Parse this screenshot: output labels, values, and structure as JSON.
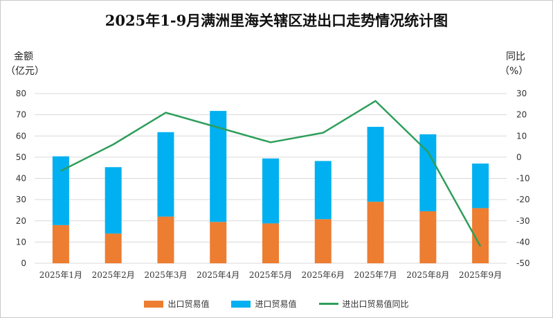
{
  "colors": {
    "export": "#ED7D31",
    "import": "#00B0F0",
    "yoy": "#2E9E5A",
    "grid": "#d9d9d9"
  },
  "chart_data": {
    "type": "bar",
    "stacked": true,
    "title": "2025年1-9月满洲里海关辖区进出口走势情况统计图",
    "ylabel_left_line1": "金额",
    "ylabel_left_line2": "（亿元）",
    "ylabel_right_line1": "同比",
    "ylabel_right_line2": "（%）",
    "categories": [
      "2025年1月",
      "2025年2月",
      "2025年3月",
      "2025年4月",
      "2025年5月",
      "2025年6月",
      "2025年7月",
      "2025年8月",
      "2025年9月"
    ],
    "ylim_left": [
      0,
      80
    ],
    "ylim_right": [
      -50,
      30
    ],
    "yticks_left": [
      "80",
      "70",
      "60",
      "50",
      "40",
      "30",
      "20",
      "10",
      "0"
    ],
    "yticks_right": [
      "30",
      "20",
      "10",
      "0",
      "-10",
      "-20",
      "-30",
      "-40",
      "-50"
    ],
    "grid": true,
    "legend_position": "bottom",
    "series": [
      {
        "name": "出口贸易值",
        "axis": "left",
        "kind": "bar",
        "values": [
          18,
          14,
          22,
          19.5,
          18.8,
          20.8,
          29,
          24.5,
          26
        ]
      },
      {
        "name": "进口贸易值",
        "axis": "left",
        "kind": "bar",
        "values": [
          32.4,
          31.3,
          39.8,
          52.3,
          30.6,
          27.4,
          35.3,
          36.3,
          21
        ]
      },
      {
        "name": "进出口贸易值同比",
        "axis": "right",
        "kind": "line",
        "values": [
          -6.5,
          6,
          21,
          14,
          7,
          11.5,
          26.5,
          2.5,
          -42
        ]
      }
    ]
  }
}
